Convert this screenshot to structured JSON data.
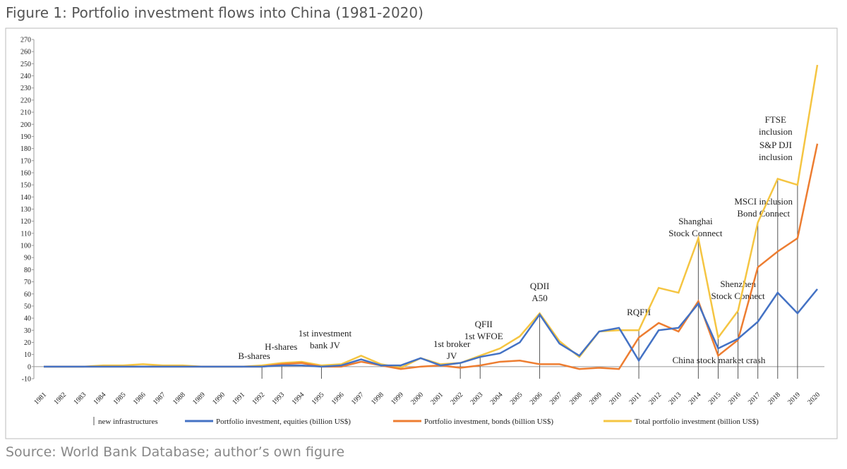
{
  "header": {
    "title": "Figure 1: Portfolio investment flows into China (1981-2020)"
  },
  "chart_data": {
    "type": "line",
    "categories": [
      "1981",
      "1982",
      "1983",
      "1984",
      "1985",
      "1986",
      "1987",
      "1988",
      "1989",
      "1990",
      "1991",
      "1992",
      "1993",
      "1994",
      "1995",
      "1996",
      "1997",
      "1998",
      "1999",
      "2000",
      "2001",
      "2002",
      "2003",
      "2004",
      "2005",
      "2006",
      "2007",
      "2008",
      "2009",
      "2010",
      "2011",
      "2012",
      "2013",
      "2014",
      "2015",
      "2016",
      "2017",
      "2018",
      "2019",
      "2020"
    ],
    "series": [
      {
        "name": "Portfolio investment, equities (billion US$)",
        "color": "#4472c4",
        "values": [
          0,
          0,
          0,
          0,
          0,
          0,
          0,
          0,
          0,
          0,
          0,
          0,
          1,
          1,
          0,
          1,
          6,
          1,
          1,
          7,
          1,
          3,
          8,
          11,
          20,
          43,
          19,
          9,
          29,
          32,
          5,
          30,
          32,
          52,
          15,
          23,
          37,
          61,
          44,
          64
        ]
      },
      {
        "name": "Portfolio investment, bonds (billion US$)",
        "color": "#ed7d31",
        "values": [
          0,
          0,
          0,
          0,
          0,
          0,
          0,
          0,
          0,
          0,
          0,
          0,
          2,
          3,
          0,
          0,
          4,
          1,
          -2,
          0,
          1,
          -1,
          1,
          4,
          5,
          2,
          2,
          -2,
          -1,
          -2,
          24,
          36,
          29,
          54,
          9,
          22,
          82,
          95,
          106,
          184
        ]
      },
      {
        "name": "Total portfolio investment (billion US$)",
        "color": "#f5c542",
        "values": [
          0,
          0,
          0,
          1,
          1,
          2,
          1,
          1,
          0,
          0,
          0,
          1,
          3,
          4,
          1,
          2,
          9,
          2,
          -1,
          7,
          2,
          3,
          9,
          15,
          25,
          44,
          21,
          8,
          29,
          30,
          30,
          65,
          61,
          106,
          24,
          46,
          119,
          155,
          150,
          249
        ]
      }
    ],
    "ylim": [
      -10,
      270
    ],
    "yticks": [
      -10,
      0,
      10,
      20,
      30,
      40,
      50,
      60,
      70,
      80,
      90,
      100,
      110,
      120,
      130,
      140,
      150,
      160,
      170,
      180,
      190,
      200,
      210,
      220,
      230,
      240,
      250,
      260,
      270
    ],
    "marker_legend": "new infrastructures",
    "annotations": [
      {
        "year": 1992,
        "text": [
          "B-shares"
        ]
      },
      {
        "year": 1993,
        "text": [
          "H-shares"
        ]
      },
      {
        "year": 1995,
        "text": [
          "1st investment",
          "bank JV"
        ]
      },
      {
        "year": 2002,
        "text": [
          "1st broker",
          "JV"
        ]
      },
      {
        "year": 2003,
        "text": [
          "QFII",
          "1st WFOE"
        ]
      },
      {
        "year": 2006,
        "text": [
          "QDII",
          "A50"
        ]
      },
      {
        "year": 2011,
        "text": [
          "RQFII"
        ]
      },
      {
        "year": 2014,
        "text": [
          "Shanghai",
          "Stock Connect"
        ]
      },
      {
        "year": 2015,
        "text": [
          "China stock market crash"
        ]
      },
      {
        "year": 2016,
        "text": [
          "Shenzhen",
          "Stock Connect"
        ]
      },
      {
        "year": 2017,
        "text": [
          "MSCI inclusion",
          "Bond Connect"
        ]
      },
      {
        "year": 2018,
        "text": [
          "FTSE",
          "inclusion"
        ]
      },
      {
        "year": 2019,
        "text": [
          "S&P DJI",
          "inclusion"
        ]
      }
    ]
  },
  "footer": {
    "source": "Source: World Bank Database; author’s own figure"
  }
}
